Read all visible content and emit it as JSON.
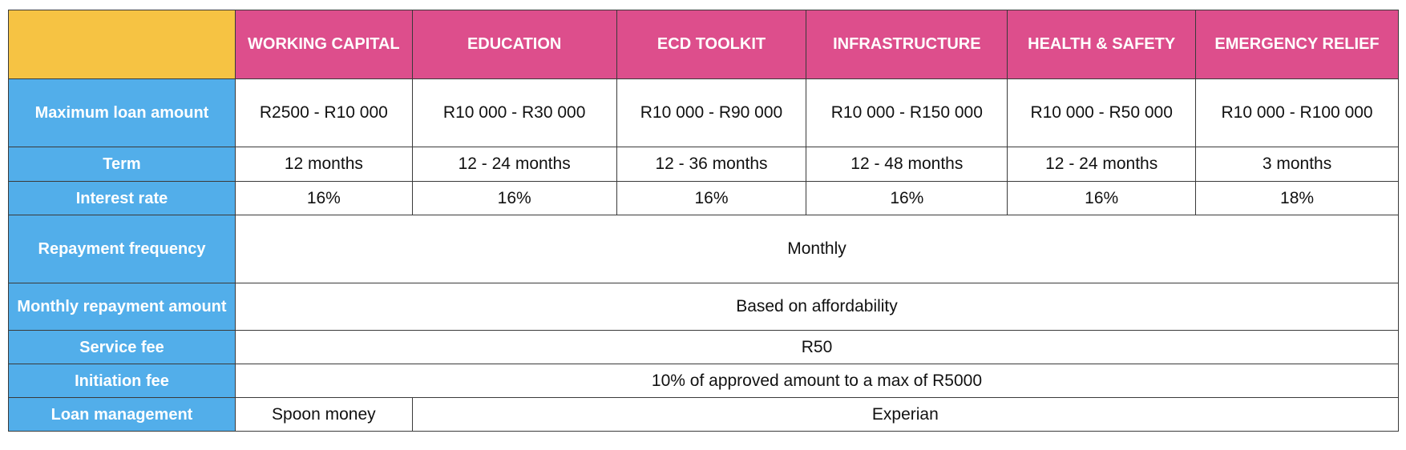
{
  "columns": [
    "WORKING CAPITAL",
    "EDUCATION",
    "ECD TOOLKIT",
    "INFRASTRUCTURE",
    "HEALTH & SAFETY",
    "EMERGENCY RELIEF"
  ],
  "rows": {
    "max_loan": {
      "label": "Maximum loan amount",
      "values": [
        "R2500 - R10 000",
        "R10 000 - R30 000",
        "R10 000 - R90 000",
        "R10 000 - R150 000",
        "R10 000 - R50 000",
        "R10 000 - R100 000"
      ]
    },
    "term": {
      "label": "Term",
      "values": [
        "12 months",
        "12 - 24 months",
        "12 - 36 months",
        "12 - 48 months",
        "12 - 24 months",
        "3 months"
      ]
    },
    "interest": {
      "label": "Interest rate",
      "values": [
        "16%",
        "16%",
        "16%",
        "16%",
        "16%",
        "18%"
      ]
    },
    "repayment_frequency": {
      "label": "Repayment frequency",
      "value": "Monthly"
    },
    "monthly_repayment": {
      "label": "Monthly repayment amount",
      "value": "Based on affordability"
    },
    "service_fee": {
      "label": "Service fee",
      "value": "R50"
    },
    "initiation_fee": {
      "label": "Initiation fee",
      "value": "10% of approved amount to a max of R5000"
    },
    "loan_management": {
      "label": "Loan management",
      "values": [
        "Spoon money",
        "Experian"
      ]
    }
  },
  "colors": {
    "corner": "#f6c343",
    "column_header": "#dd4e8c",
    "row_header": "#52aeea"
  }
}
